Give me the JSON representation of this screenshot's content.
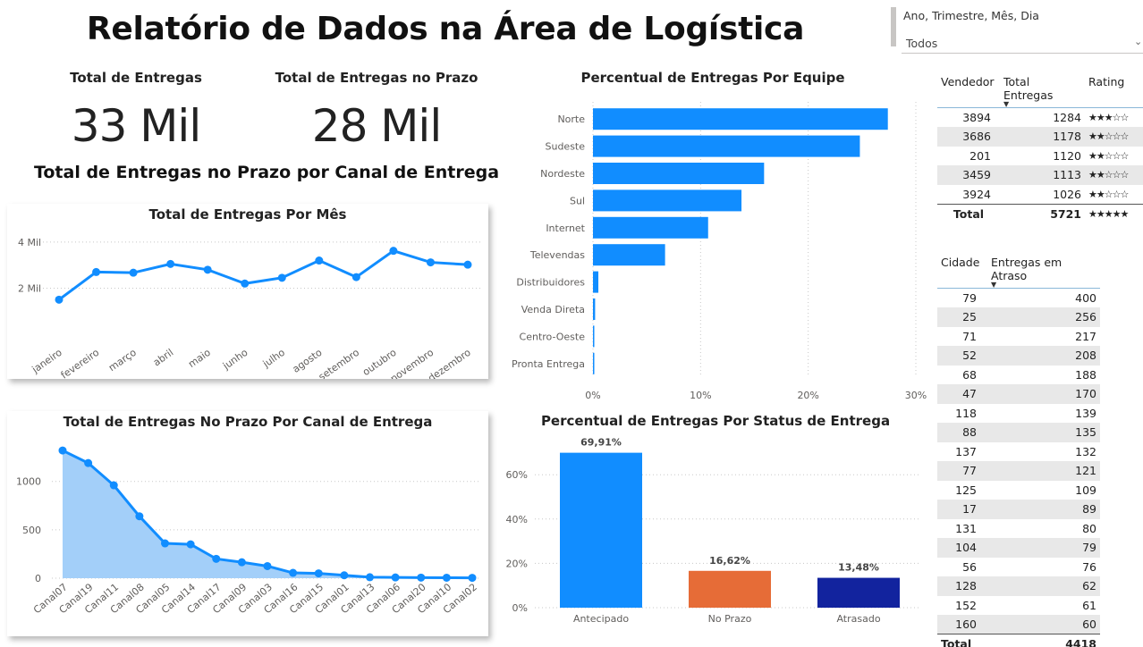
{
  "header": {
    "title": "Relatório de Dados na Área de Logística"
  },
  "slicer": {
    "label": "Ano, Trimestre, Mês, Dia",
    "value": "Todos",
    "chevron_icon": "chevron-down-icon"
  },
  "kpis": {
    "total": {
      "label": "Total de Entregas",
      "value": "33 Mil"
    },
    "on_time": {
      "label": "Total de Entregas no Prazo",
      "value": "28 Mil"
    }
  },
  "section_title": "Total de Entregas no Prazo por Canal de Entrega",
  "colors": {
    "primary": "#118DFF",
    "area_fill": "#A3CFF9",
    "orange": "#E66C37",
    "navy": "#12239E"
  },
  "chart_data": [
    {
      "id": "monthly",
      "type": "line",
      "title": "Total de Entregas Por Mês",
      "categories": [
        "janeiro",
        "fevereiro",
        "março",
        "abril",
        "maio",
        "junho",
        "julho",
        "agosto",
        "setembro",
        "outubro",
        "novembro",
        "dezembro"
      ],
      "values": [
        1500,
        2700,
        2670,
        3050,
        2800,
        2200,
        2450,
        3200,
        2480,
        3620,
        3120,
        3020
      ],
      "ylim": [
        0,
        4500
      ],
      "yticks": [
        {
          "value": 2000,
          "label": "2 Mil"
        },
        {
          "value": 4000,
          "label": "4 Mil"
        }
      ],
      "grid": true
    },
    {
      "id": "channel",
      "type": "area",
      "title": "Total de Entregas No Prazo Por Canal de Entrega",
      "categories": [
        "Canal07",
        "Canal19",
        "Canal11",
        "Canal08",
        "Canal05",
        "Canal14",
        "Canal17",
        "Canal09",
        "Canal03",
        "Canal16",
        "Canal15",
        "Canal01",
        "Canal13",
        "Canal06",
        "Canal20",
        "Canal10",
        "Canal02"
      ],
      "values": [
        1320,
        1190,
        960,
        640,
        360,
        350,
        200,
        165,
        125,
        55,
        50,
        30,
        10,
        8,
        6,
        5,
        4
      ],
      "ylim": [
        0,
        1450
      ],
      "yticks": [
        {
          "value": 0,
          "label": "0"
        },
        {
          "value": 500,
          "label": "500"
        },
        {
          "value": 1000,
          "label": "1000"
        }
      ],
      "grid": true
    },
    {
      "id": "team",
      "type": "bar",
      "orientation": "horizontal",
      "title": "Percentual de Entregas Por Equipe",
      "categories": [
        "Norte",
        "Sudeste",
        "Nordeste",
        "Sul",
        "Internet",
        "Televendas",
        "Distribuidores",
        "Venda Direta",
        "Centro-Oeste",
        "Pronta Entrega"
      ],
      "values": [
        27.4,
        24.8,
        15.9,
        13.8,
        10.7,
        6.7,
        0.5,
        0.2,
        0.1,
        0.1
      ],
      "xlim": [
        0,
        30
      ],
      "xticks": [
        {
          "value": 0,
          "label": "0%"
        },
        {
          "value": 10,
          "label": "10%"
        },
        {
          "value": 20,
          "label": "20%"
        },
        {
          "value": 30,
          "label": "30%"
        }
      ],
      "grid": true
    },
    {
      "id": "status",
      "type": "bar",
      "title": "Percentual de Entregas Por Status de Entrega",
      "categories": [
        "Antecipado",
        "No Prazo",
        "Atrasado"
      ],
      "values": [
        69.91,
        16.62,
        13.48
      ],
      "data_labels": [
        "69,91%",
        "16,62%",
        "13,48%"
      ],
      "ylim": [
        0,
        75
      ],
      "yticks": [
        {
          "value": 0,
          "label": "0%"
        },
        {
          "value": 20,
          "label": "20%"
        },
        {
          "value": 40,
          "label": "40%"
        },
        {
          "value": 60,
          "label": "60%"
        }
      ],
      "grid": true
    }
  ],
  "sellers": {
    "headers": [
      "Vendedor",
      "Total Entregas",
      "Rating"
    ],
    "rows": [
      {
        "vendedor": "3894",
        "total": "1284",
        "rating": "★★★☆☆"
      },
      {
        "vendedor": "3686",
        "total": "1178",
        "rating": "★★☆☆☆"
      },
      {
        "vendedor": "201",
        "total": "1120",
        "rating": "★★☆☆☆"
      },
      {
        "vendedor": "3459",
        "total": "1113",
        "rating": "★★☆☆☆"
      },
      {
        "vendedor": "3924",
        "total": "1026",
        "rating": "★★☆☆☆"
      }
    ],
    "total": {
      "label": "Total",
      "value": "5721",
      "rating": "★★★★★"
    }
  },
  "cities": {
    "headers": [
      "Cidade",
      "Entregas em Atraso"
    ],
    "rows": [
      {
        "cidade": "79",
        "atraso": "400"
      },
      {
        "cidade": "25",
        "atraso": "256"
      },
      {
        "cidade": "71",
        "atraso": "217"
      },
      {
        "cidade": "52",
        "atraso": "208"
      },
      {
        "cidade": "68",
        "atraso": "188"
      },
      {
        "cidade": "47",
        "atraso": "170"
      },
      {
        "cidade": "118",
        "atraso": "139"
      },
      {
        "cidade": "88",
        "atraso": "135"
      },
      {
        "cidade": "137",
        "atraso": "132"
      },
      {
        "cidade": "77",
        "atraso": "121"
      },
      {
        "cidade": "125",
        "atraso": "109"
      },
      {
        "cidade": "17",
        "atraso": "89"
      },
      {
        "cidade": "131",
        "atraso": "80"
      },
      {
        "cidade": "104",
        "atraso": "79"
      },
      {
        "cidade": "56",
        "atraso": "76"
      },
      {
        "cidade": "128",
        "atraso": "62"
      },
      {
        "cidade": "152",
        "atraso": "61"
      },
      {
        "cidade": "160",
        "atraso": "60"
      }
    ],
    "total": {
      "label": "Total",
      "value": "4418"
    }
  }
}
